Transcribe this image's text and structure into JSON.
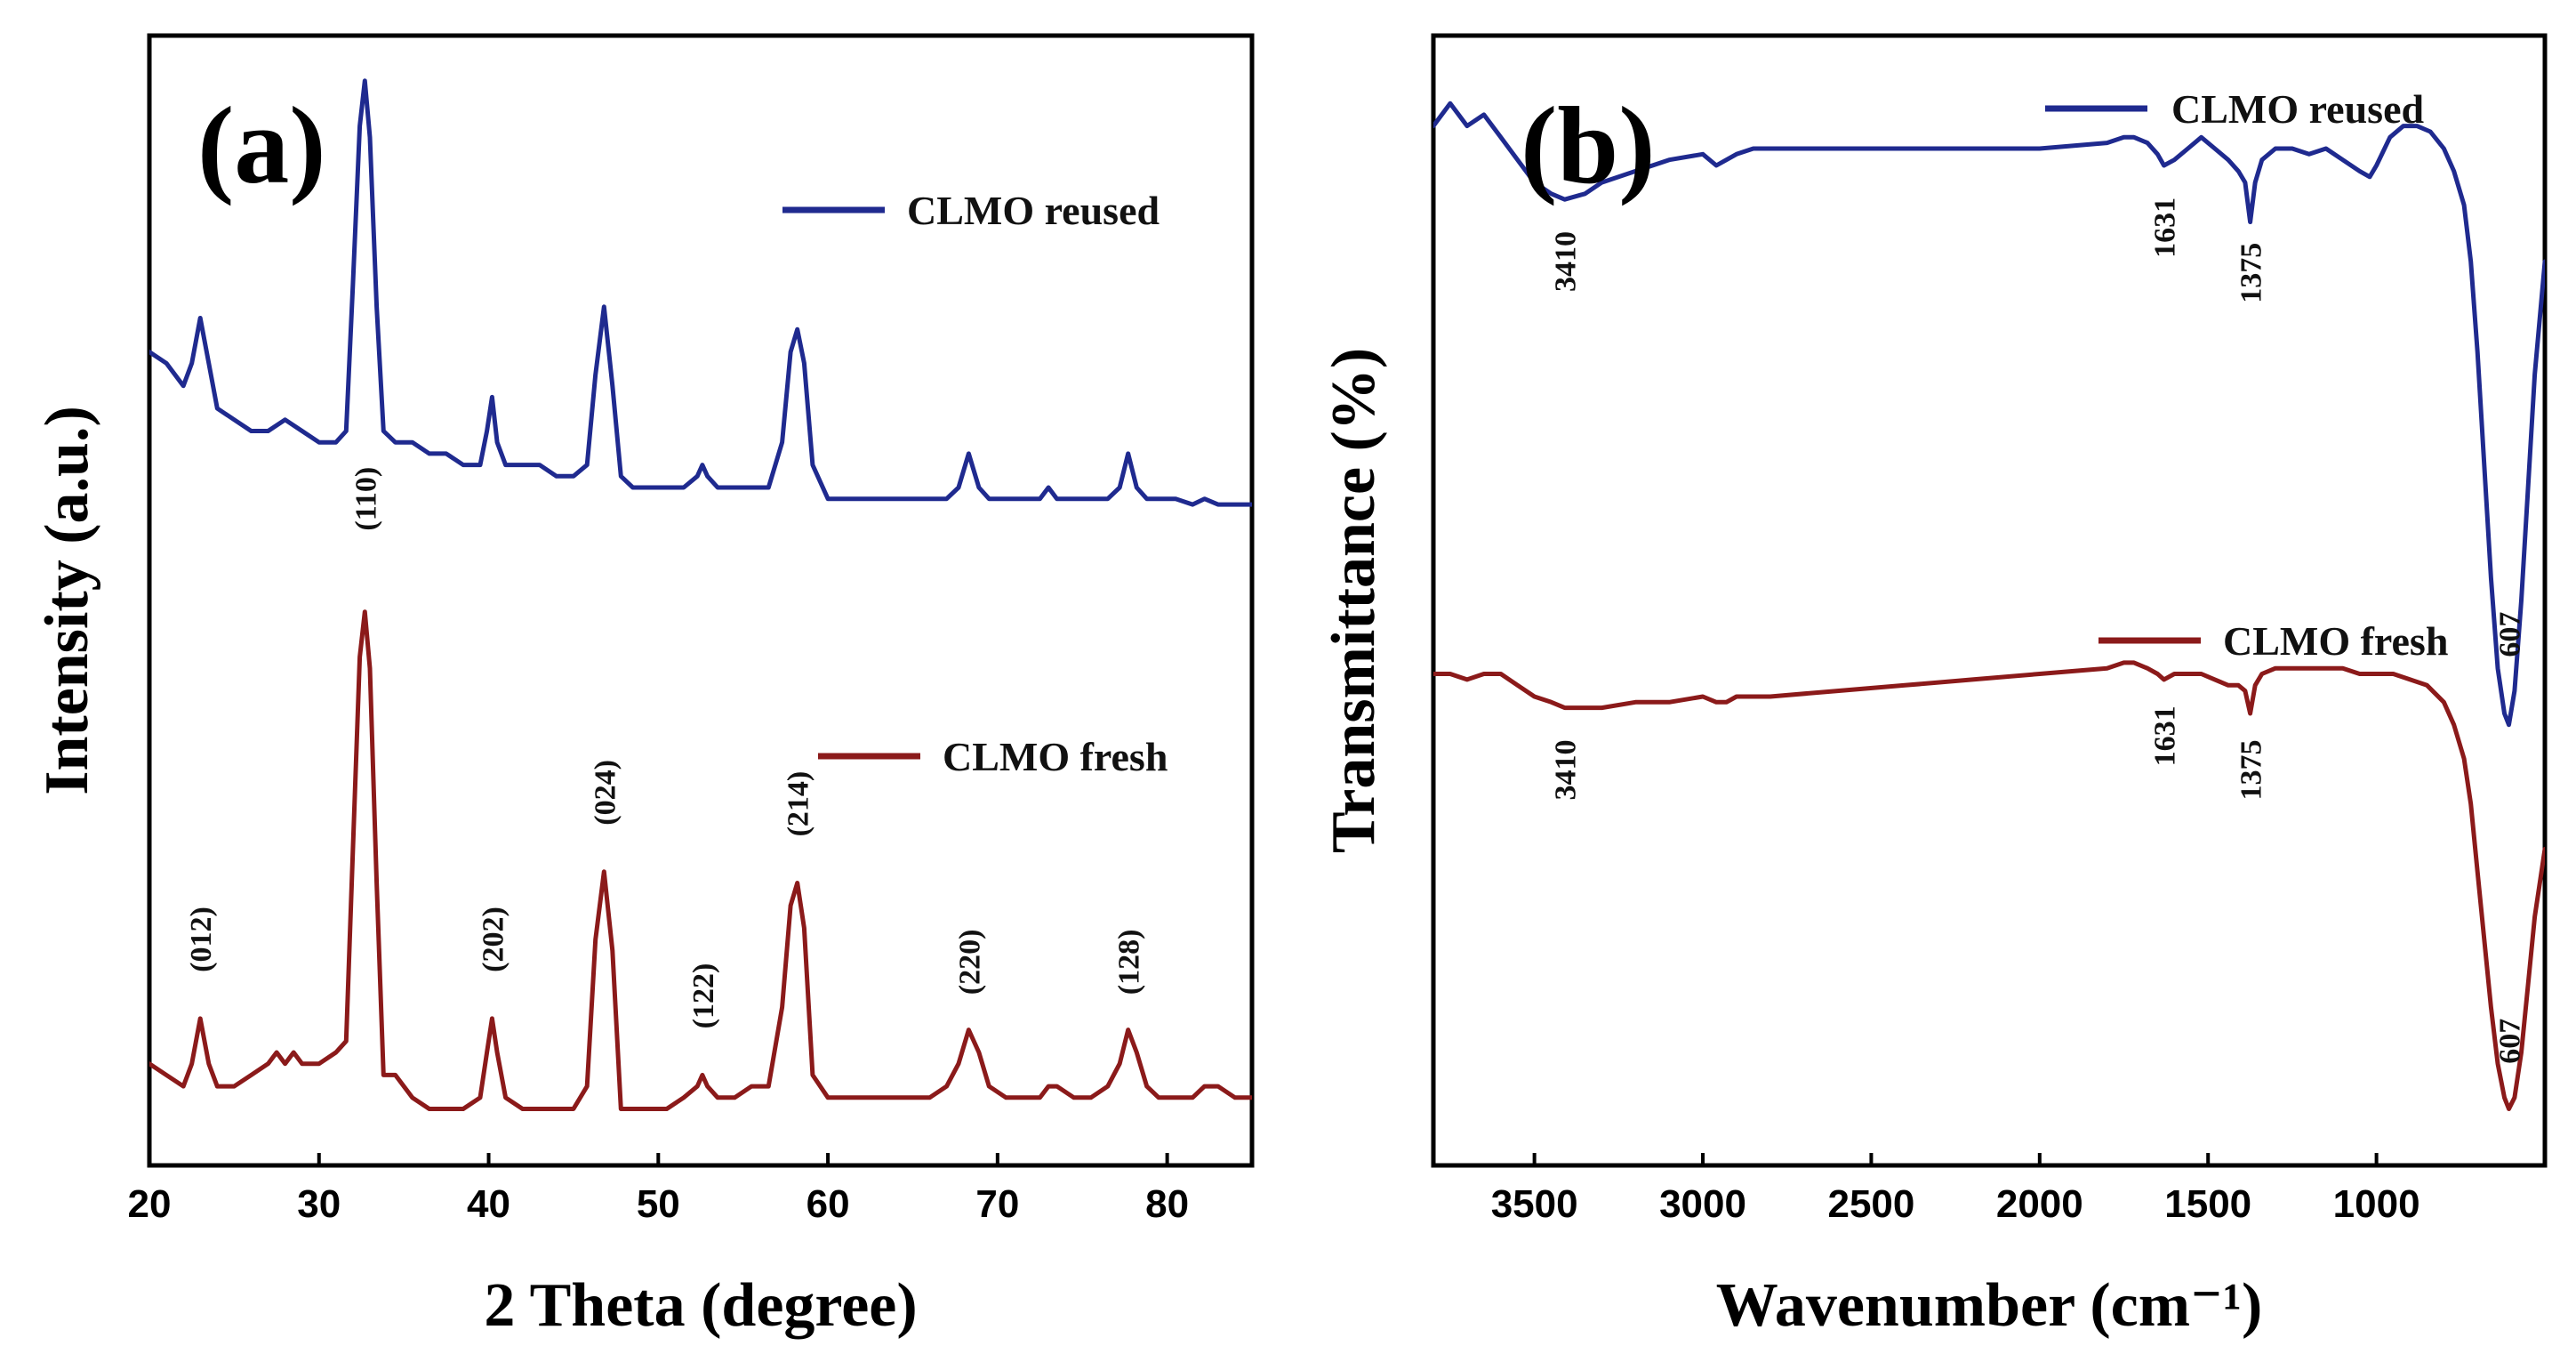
{
  "colors": {
    "reused": "#1f2a8f",
    "fresh": "#8b1a1a"
  },
  "chart_data": [
    {
      "type": "line",
      "panel_label": "(a)",
      "xlabel": "2 Theta (degree)",
      "ylabel": "Intensity (a.u.)",
      "xlim": [
        20,
        85
      ],
      "ylim": [
        0,
        100
      ],
      "x_ticks": [
        20,
        30,
        40,
        50,
        60,
        70,
        80
      ],
      "y_ticks_shown": false,
      "legend_placement": "top-right (per series)",
      "series": [
        {
          "name": "CLMO reused",
          "color": "#1f2a8f",
          "x": [
            20,
            21,
            22,
            22.5,
            23,
            23.5,
            24,
            25,
            26,
            27,
            28,
            29,
            30,
            31,
            31.6,
            32,
            32.4,
            32.7,
            33,
            33.4,
            33.8,
            34.5,
            35.5,
            36.5,
            37.5,
            38.5,
            39.5,
            39.9,
            40.2,
            40.5,
            41,
            42,
            43,
            44,
            45,
            45.8,
            46.3,
            46.8,
            47.3,
            47.8,
            48.5,
            49.5,
            50.5,
            51.5,
            52.3,
            52.6,
            52.9,
            53.5,
            54.5,
            55.5,
            56.5,
            57.3,
            57.8,
            58.2,
            58.6,
            59.1,
            60,
            61,
            62,
            63,
            64,
            65,
            66,
            67,
            67.7,
            68.3,
            68.9,
            69.5,
            70.5,
            71.5,
            72.5,
            73,
            73.5,
            74.5,
            75.5,
            76.5,
            77.2,
            77.7,
            78.2,
            78.8,
            79.5,
            80.5,
            81.5,
            82.2,
            83,
            84,
            85
          ],
          "y": [
            72,
            71,
            69,
            71,
            75,
            71,
            67,
            66,
            65,
            65,
            66,
            65,
            64,
            64,
            65,
            78,
            92,
            96,
            91,
            76,
            65,
            64,
            64,
            63,
            63,
            62,
            62,
            65,
            68,
            64,
            62,
            62,
            62,
            61,
            61,
            62,
            70,
            76,
            69,
            61,
            60,
            60,
            60,
            60,
            61,
            62,
            61,
            60,
            60,
            60,
            60,
            64,
            72,
            74,
            71,
            62,
            59,
            59,
            59,
            59,
            59,
            59,
            59,
            59,
            60,
            63,
            60,
            59,
            59,
            59,
            59,
            60,
            59,
            59,
            59,
            59,
            60,
            63,
            60,
            59,
            59,
            59,
            58.5,
            59,
            58.5,
            58.5,
            58.5
          ]
        },
        {
          "name": "CLMO fresh",
          "color": "#8b1a1a",
          "x": [
            20,
            21,
            22,
            22.5,
            23,
            23.5,
            24,
            25,
            26,
            27,
            27.5,
            28,
            28.5,
            29,
            30,
            31,
            31.6,
            32,
            32.4,
            32.7,
            33,
            33.4,
            33.8,
            34.5,
            35.5,
            36.5,
            37.5,
            38.5,
            39.5,
            39.9,
            40.2,
            40.5,
            41,
            42,
            43,
            44,
            45,
            45.8,
            46.3,
            46.8,
            47.3,
            47.8,
            48.5,
            49.5,
            50.5,
            51.5,
            52.3,
            52.6,
            52.9,
            53.5,
            54.5,
            55.5,
            56.5,
            57.3,
            57.8,
            58.2,
            58.6,
            59.1,
            60,
            61,
            62,
            63,
            64,
            65,
            66,
            67,
            67.7,
            68.3,
            68.9,
            69.5,
            70.5,
            71.5,
            72.5,
            73,
            73.5,
            74.5,
            75.5,
            76.5,
            77.2,
            77.7,
            78.2,
            78.8,
            79.5,
            80.5,
            81.5,
            82.2,
            83,
            84,
            85
          ],
          "y": [
            9,
            8,
            7,
            9,
            13,
            9,
            7,
            7,
            8,
            9,
            10,
            9,
            10,
            9,
            9,
            10,
            11,
            28,
            45,
            49,
            44,
            25,
            8,
            8,
            6,
            5,
            5,
            5,
            6,
            10,
            13,
            10,
            6,
            5,
            5,
            5,
            5,
            7,
            20,
            26,
            19,
            5,
            5,
            5,
            5,
            6,
            7,
            8,
            7,
            6,
            6,
            7,
            7,
            14,
            23,
            25,
            21,
            8,
            6,
            6,
            6,
            6,
            6,
            6,
            6,
            7,
            9,
            12,
            10,
            7,
            6,
            6,
            6,
            7,
            7,
            6,
            6,
            7,
            9,
            12,
            10,
            7,
            6,
            6,
            6,
            7,
            7,
            6,
            6
          ]
        }
      ],
      "annotations": [
        {
          "text": "(012)",
          "x": 23,
          "y": 20
        },
        {
          "text": "(110)",
          "x": 32.7,
          "y": 59
        },
        {
          "text": "(202)",
          "x": 40.2,
          "y": 20
        },
        {
          "text": "(024)",
          "x": 46.8,
          "y": 33
        },
        {
          "text": "(122)",
          "x": 52.6,
          "y": 15
        },
        {
          "text": "(214)",
          "x": 58.2,
          "y": 32
        },
        {
          "text": "(220)",
          "x": 68.3,
          "y": 18
        },
        {
          "text": "(128)",
          "x": 77.7,
          "y": 18
        }
      ]
    },
    {
      "type": "line",
      "panel_label": "(b)",
      "xlabel": "Wavenumber (cm⁻¹)",
      "ylabel": "Transmittance (%)",
      "xlim": [
        3800,
        500
      ],
      "ylim": [
        0,
        100
      ],
      "x_ticks": [
        3500,
        3000,
        2500,
        2000,
        1500,
        1000
      ],
      "y_ticks_shown": false,
      "legend_placement": "top-right (per series)",
      "series": [
        {
          "name": "CLMO reused",
          "color": "#1f2a8f",
          "x": [
            3800,
            3750,
            3700,
            3650,
            3600,
            3550,
            3500,
            3450,
            3410,
            3350,
            3300,
            3200,
            3100,
            3000,
            2960,
            2930,
            2900,
            2850,
            2800,
            2600,
            2400,
            2200,
            2000,
            1800,
            1750,
            1720,
            1680,
            1650,
            1631,
            1600,
            1560,
            1520,
            1480,
            1440,
            1410,
            1390,
            1375,
            1360,
            1340,
            1300,
            1250,
            1200,
            1150,
            1100,
            1050,
            1020,
            1000,
            960,
            920,
            880,
            840,
            800,
            770,
            740,
            720,
            700,
            680,
            660,
            640,
            620,
            607,
            590,
            570,
            550,
            530,
            500
          ],
          "y": [
            92,
            94,
            92,
            93,
            91,
            89,
            87,
            86,
            85.5,
            86,
            87,
            88,
            89,
            89.5,
            88.5,
            89,
            89.5,
            90,
            90,
            90,
            90,
            90,
            90,
            90.5,
            91,
            91,
            90.5,
            89.5,
            88.5,
            89,
            90,
            91,
            90,
            89,
            88,
            87,
            83.5,
            87,
            89,
            90,
            90,
            89.5,
            90,
            89,
            88,
            87.5,
            88.5,
            91,
            92,
            92,
            91.5,
            90,
            88,
            85,
            80,
            72,
            62,
            52,
            44,
            40,
            39,
            42,
            50,
            60,
            70,
            80
          ]
        },
        {
          "name": "CLMO fresh",
          "color": "#8b1a1a",
          "x": [
            3800,
            3750,
            3700,
            3650,
            3600,
            3550,
            3500,
            3450,
            3410,
            3350,
            3300,
            3200,
            3100,
            3000,
            2960,
            2930,
            2900,
            2850,
            2800,
            2600,
            2400,
            2200,
            2000,
            1800,
            1750,
            1720,
            1680,
            1650,
            1631,
            1600,
            1560,
            1520,
            1480,
            1440,
            1410,
            1390,
            1375,
            1360,
            1340,
            1300,
            1250,
            1200,
            1150,
            1100,
            1050,
            1000,
            950,
            900,
            850,
            800,
            770,
            740,
            720,
            700,
            680,
            660,
            640,
            620,
            607,
            590,
            570,
            550,
            530,
            500
          ],
          "y": [
            43.5,
            43.5,
            43,
            43.5,
            43.5,
            42.5,
            41.5,
            41,
            40.5,
            40.5,
            40.5,
            41,
            41,
            41.5,
            41,
            41,
            41.5,
            41.5,
            41.5,
            42,
            42.5,
            43,
            43.5,
            44,
            44.5,
            44.5,
            44,
            43.5,
            43,
            43.5,
            43.5,
            43.5,
            43,
            42.5,
            42.5,
            42,
            40,
            42.5,
            43.5,
            44,
            44,
            44,
            44,
            44,
            43.5,
            43.5,
            43.5,
            43,
            42.5,
            41,
            39,
            36,
            32,
            26,
            20,
            14,
            9,
            6,
            5,
            6,
            10,
            16,
            22,
            28
          ]
        }
      ],
      "annotations": [
        {
          "text": "3410",
          "x": 3410,
          "y": 80
        },
        {
          "text": "1631",
          "x": 1631,
          "y": 83
        },
        {
          "text": "1375",
          "x": 1375,
          "y": 79
        },
        {
          "text": "607",
          "x": 607,
          "y": 47
        },
        {
          "text": "3410",
          "x": 3410,
          "y": 35
        },
        {
          "text": "1631",
          "x": 1631,
          "y": 38
        },
        {
          "text": "1375",
          "x": 1375,
          "y": 35
        },
        {
          "text": "607",
          "x": 607,
          "y": 11
        }
      ]
    }
  ]
}
